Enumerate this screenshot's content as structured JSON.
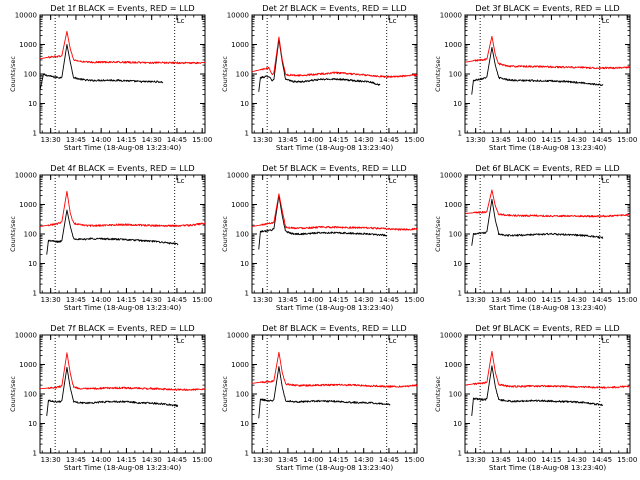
{
  "chart_data": [
    {
      "type": "line",
      "title": "Det 1f BLACK = Events, RED = LLD",
      "xlabel": "Start Time (18-Aug-08 13:23:40)",
      "ylabel": "Counts/sec",
      "x_tick_labels": [
        "13:30",
        "13:45",
        "14:00",
        "14:15",
        "14:30",
        "14:45",
        "15:00"
      ],
      "y_tick_labels": [
        "1",
        "10",
        "100",
        "1000",
        "10000"
      ],
      "xlim_min": [
        0,
        98
      ],
      "ylim": [
        1,
        10000
      ],
      "y_scale": "log",
      "grid": false,
      "vlines_min": [
        9,
        80
      ],
      "vline_label": "Lc",
      "series": [
        {
          "color": "#000000",
          "t": [
            0,
            2,
            8,
            12,
            13,
            16,
            18,
            20,
            25,
            30,
            40,
            50,
            60,
            70,
            73
          ],
          "y": [
            28,
            95,
            80,
            75,
            78,
            1000,
            250,
            75,
            65,
            60,
            62,
            60,
            55,
            55,
            52
          ]
        },
        {
          "color": "#ff0000",
          "t": [
            0,
            5,
            8,
            12,
            13,
            16,
            18,
            20,
            25,
            30,
            40,
            50,
            60,
            70,
            80,
            90,
            98
          ],
          "y": [
            330,
            370,
            390,
            400,
            420,
            2800,
            700,
            300,
            260,
            250,
            255,
            250,
            245,
            240,
            240,
            235,
            240
          ]
        }
      ]
    },
    {
      "type": "line",
      "title": "Det 2f BLACK = Events, RED = LLD",
      "xlabel": "Start Time (18-Aug-08 13:23:40)",
      "ylabel": "Counts/sec",
      "x_tick_labels": [
        "13:30",
        "13:45",
        "14:00",
        "14:15",
        "14:30",
        "14:45",
        "15:00"
      ],
      "y_tick_labels": [
        "1",
        "10",
        "100",
        "1000",
        "10000"
      ],
      "xlim_min": [
        0,
        98
      ],
      "ylim": [
        1,
        10000
      ],
      "y_scale": "log",
      "grid": false,
      "vlines_min": [
        9,
        80
      ],
      "vline_label": "Lc",
      "series": [
        {
          "color": "#000000",
          "t": [
            4,
            5,
            10,
            12,
            13,
            16,
            18,
            20,
            25,
            30,
            40,
            50,
            60,
            70,
            76
          ],
          "y": [
            25,
            75,
            85,
            60,
            65,
            1500,
            250,
            65,
            55,
            55,
            65,
            68,
            60,
            55,
            42
          ]
        },
        {
          "color": "#ff0000",
          "t": [
            0,
            5,
            10,
            12,
            13,
            16,
            18,
            20,
            25,
            30,
            40,
            50,
            60,
            70,
            80,
            90,
            98
          ],
          "y": [
            120,
            140,
            160,
            100,
            110,
            1800,
            300,
            95,
            90,
            90,
            100,
            110,
            100,
            90,
            80,
            85,
            95
          ]
        }
      ]
    },
    {
      "type": "line",
      "title": "Det 3f BLACK = Events, RED = LLD",
      "xlabel": "Start Time (18-Aug-08 13:23:40)",
      "ylabel": "Counts/sec",
      "x_tick_labels": [
        "13:30",
        "13:45",
        "14:00",
        "14:15",
        "14:30",
        "14:45",
        "15:00"
      ],
      "y_tick_labels": [
        "1",
        "10",
        "100",
        "1000",
        "10000"
      ],
      "xlim_min": [
        0,
        98
      ],
      "ylim": [
        1,
        10000
      ],
      "y_scale": "log",
      "grid": false,
      "vlines_min": [
        9,
        80
      ],
      "vline_label": "Lc",
      "series": [
        {
          "color": "#000000",
          "t": [
            4,
            5,
            10,
            12,
            13,
            16,
            18,
            20,
            25,
            30,
            40,
            50,
            60,
            70,
            82
          ],
          "y": [
            20,
            60,
            70,
            75,
            80,
            800,
            200,
            75,
            65,
            60,
            60,
            58,
            55,
            50,
            42
          ]
        },
        {
          "color": "#ff0000",
          "t": [
            0,
            5,
            10,
            12,
            13,
            16,
            18,
            20,
            25,
            30,
            40,
            50,
            60,
            70,
            80,
            90,
            98
          ],
          "y": [
            250,
            280,
            300,
            310,
            320,
            1900,
            450,
            220,
            190,
            180,
            180,
            175,
            170,
            165,
            160,
            160,
            170
          ]
        }
      ]
    },
    {
      "type": "line",
      "title": "Det 4f BLACK = Events, RED = LLD",
      "xlabel": "Start Time (18-Aug-08 13:23:40)",
      "ylabel": "Counts/sec",
      "x_tick_labels": [
        "13:30",
        "13:45",
        "14:00",
        "14:15",
        "14:30",
        "14:45",
        "15:00"
      ],
      "y_tick_labels": [
        "1",
        "10",
        "100",
        "1000",
        "10000"
      ],
      "xlim_min": [
        0,
        98
      ],
      "ylim": [
        1,
        10000
      ],
      "y_scale": "log",
      "grid": false,
      "vlines_min": [
        9,
        80
      ],
      "vline_label": "Lc",
      "series": [
        {
          "color": "#000000",
          "t": [
            4,
            5,
            10,
            12,
            13,
            16,
            18,
            20,
            25,
            30,
            40,
            50,
            60,
            70,
            82
          ],
          "y": [
            20,
            60,
            55,
            55,
            60,
            650,
            180,
            70,
            65,
            70,
            68,
            65,
            60,
            55,
            45
          ]
        },
        {
          "color": "#ff0000",
          "t": [
            0,
            5,
            10,
            12,
            13,
            16,
            18,
            20,
            25,
            30,
            40,
            50,
            60,
            70,
            80,
            90,
            98
          ],
          "y": [
            180,
            200,
            220,
            240,
            260,
            2800,
            500,
            230,
            200,
            190,
            200,
            210,
            200,
            190,
            190,
            200,
            230
          ]
        }
      ]
    },
    {
      "type": "line",
      "title": "Det 5f BLACK = Events, RED = LLD",
      "xlabel": "Start Time (18-Aug-08 13:23:40)",
      "ylabel": "Counts/sec",
      "x_tick_labels": [
        "13:30",
        "13:45",
        "14:00",
        "14:15",
        "14:30",
        "14:45",
        "15:00"
      ],
      "y_tick_labels": [
        "1",
        "10",
        "100",
        "1000",
        "10000"
      ],
      "xlim_min": [
        0,
        98
      ],
      "ylim": [
        1,
        10000
      ],
      "y_scale": "log",
      "grid": false,
      "vlines_min": [
        9,
        80
      ],
      "vline_label": "Lc",
      "series": [
        {
          "color": "#000000",
          "t": [
            4,
            5,
            10,
            12,
            13,
            16,
            18,
            20,
            25,
            30,
            40,
            50,
            60,
            70,
            80
          ],
          "y": [
            30,
            120,
            130,
            140,
            150,
            2000,
            400,
            120,
            100,
            100,
            110,
            110,
            105,
            100,
            90
          ]
        },
        {
          "color": "#ff0000",
          "t": [
            0,
            5,
            10,
            12,
            13,
            16,
            18,
            20,
            25,
            30,
            40,
            50,
            60,
            70,
            80,
            90,
            98
          ],
          "y": [
            180,
            200,
            230,
            240,
            250,
            2300,
            600,
            170,
            160,
            160,
            170,
            170,
            165,
            160,
            150,
            140,
            150
          ]
        }
      ]
    },
    {
      "type": "line",
      "title": "Det 6f BLACK = Events, RED = LLD",
      "xlabel": "Start Time (18-Aug-08 13:23:40)",
      "ylabel": "Counts/sec",
      "x_tick_labels": [
        "13:30",
        "13:45",
        "14:00",
        "14:15",
        "14:30",
        "14:45",
        "15:00"
      ],
      "y_tick_labels": [
        "1",
        "10",
        "100",
        "1000",
        "10000"
      ],
      "xlim_min": [
        0,
        98
      ],
      "ylim": [
        1,
        10000
      ],
      "y_scale": "log",
      "grid": false,
      "vlines_min": [
        9,
        80
      ],
      "vline_label": "Lc",
      "series": [
        {
          "color": "#000000",
          "t": [
            4,
            5,
            10,
            12,
            13,
            16,
            18,
            20,
            25,
            30,
            40,
            50,
            60,
            70,
            82
          ],
          "y": [
            40,
            100,
            110,
            110,
            120,
            1500,
            300,
            100,
            90,
            90,
            95,
            100,
            95,
            90,
            75
          ]
        },
        {
          "color": "#ff0000",
          "t": [
            0,
            5,
            10,
            12,
            13,
            16,
            18,
            20,
            25,
            30,
            40,
            50,
            60,
            70,
            80,
            90,
            98
          ],
          "y": [
            500,
            520,
            540,
            560,
            580,
            3100,
            900,
            470,
            440,
            420,
            420,
            410,
            410,
            400,
            400,
            420,
            450
          ]
        }
      ]
    },
    {
      "type": "line",
      "title": "Det 7f BLACK = Events, RED = LLD",
      "xlabel": "Start Time (18-Aug-08 13:23:40)",
      "ylabel": "Counts/sec",
      "x_tick_labels": [
        "13:30",
        "13:45",
        "14:00",
        "14:15",
        "14:30",
        "14:45",
        "15:00"
      ],
      "y_tick_labels": [
        "1",
        "10",
        "100",
        "1000",
        "10000"
      ],
      "xlim_min": [
        0,
        98
      ],
      "ylim": [
        1,
        10000
      ],
      "y_scale": "log",
      "grid": false,
      "vlines_min": [
        9,
        80
      ],
      "vline_label": "Lc",
      "series": [
        {
          "color": "#000000",
          "t": [
            4,
            5,
            10,
            12,
            13,
            16,
            18,
            20,
            25,
            30,
            40,
            50,
            60,
            70,
            82
          ],
          "y": [
            18,
            60,
            55,
            55,
            60,
            800,
            160,
            55,
            50,
            50,
            55,
            55,
            50,
            48,
            40
          ]
        },
        {
          "color": "#ff0000",
          "t": [
            0,
            5,
            10,
            12,
            13,
            16,
            18,
            20,
            25,
            30,
            40,
            50,
            60,
            70,
            80,
            90,
            98
          ],
          "y": [
            150,
            160,
            170,
            180,
            190,
            2500,
            500,
            170,
            150,
            150,
            160,
            160,
            155,
            150,
            140,
            140,
            150
          ]
        }
      ]
    },
    {
      "type": "line",
      "title": "Det 8f BLACK = Events, RED = LLD",
      "xlabel": "Start Time (18-Aug-08 13:23:40)",
      "ylabel": "Counts/sec",
      "x_tick_labels": [
        "13:30",
        "13:45",
        "14:00",
        "14:15",
        "14:30",
        "14:45",
        "15:00"
      ],
      "y_tick_labels": [
        "1",
        "10",
        "100",
        "1000",
        "10000"
      ],
      "xlim_min": [
        0,
        98
      ],
      "ylim": [
        1,
        10000
      ],
      "y_scale": "log",
      "grid": false,
      "vlines_min": [
        9,
        80
      ],
      "vline_label": "Lc",
      "series": [
        {
          "color": "#000000",
          "t": [
            4,
            5,
            10,
            12,
            13,
            16,
            18,
            20,
            25,
            30,
            40,
            50,
            60,
            70,
            82
          ],
          "y": [
            15,
            65,
            60,
            60,
            65,
            850,
            170,
            60,
            55,
            55,
            58,
            56,
            52,
            50,
            45
          ]
        },
        {
          "color": "#ff0000",
          "t": [
            0,
            5,
            10,
            12,
            13,
            16,
            18,
            20,
            25,
            30,
            40,
            50,
            60,
            70,
            80,
            90,
            98
          ],
          "y": [
            230,
            250,
            260,
            270,
            280,
            2600,
            520,
            220,
            200,
            195,
            200,
            205,
            200,
            190,
            180,
            180,
            195
          ]
        }
      ]
    },
    {
      "type": "line",
      "title": "Det 9f BLACK = Events, RED = LLD",
      "xlabel": "Start Time (18-Aug-08 13:23:40)",
      "ylabel": "Counts/sec",
      "x_tick_labels": [
        "13:30",
        "13:45",
        "14:00",
        "14:15",
        "14:30",
        "14:45",
        "15:00"
      ],
      "y_tick_labels": [
        "1",
        "10",
        "100",
        "1000",
        "10000"
      ],
      "xlim_min": [
        0,
        98
      ],
      "ylim": [
        1,
        10000
      ],
      "y_scale": "log",
      "grid": false,
      "vlines_min": [
        9,
        80
      ],
      "vline_label": "Lc",
      "series": [
        {
          "color": "#000000",
          "t": [
            4,
            5,
            10,
            12,
            13,
            16,
            18,
            20,
            25,
            30,
            40,
            50,
            60,
            70,
            82
          ],
          "y": [
            18,
            70,
            65,
            65,
            70,
            900,
            180,
            65,
            58,
            56,
            60,
            58,
            55,
            52,
            42
          ]
        },
        {
          "color": "#ff0000",
          "t": [
            0,
            5,
            10,
            12,
            13,
            16,
            18,
            20,
            25,
            30,
            40,
            50,
            60,
            70,
            80,
            90,
            98
          ],
          "y": [
            200,
            220,
            230,
            240,
            250,
            2800,
            550,
            210,
            185,
            180,
            185,
            185,
            180,
            175,
            165,
            170,
            185
          ]
        }
      ]
    }
  ]
}
